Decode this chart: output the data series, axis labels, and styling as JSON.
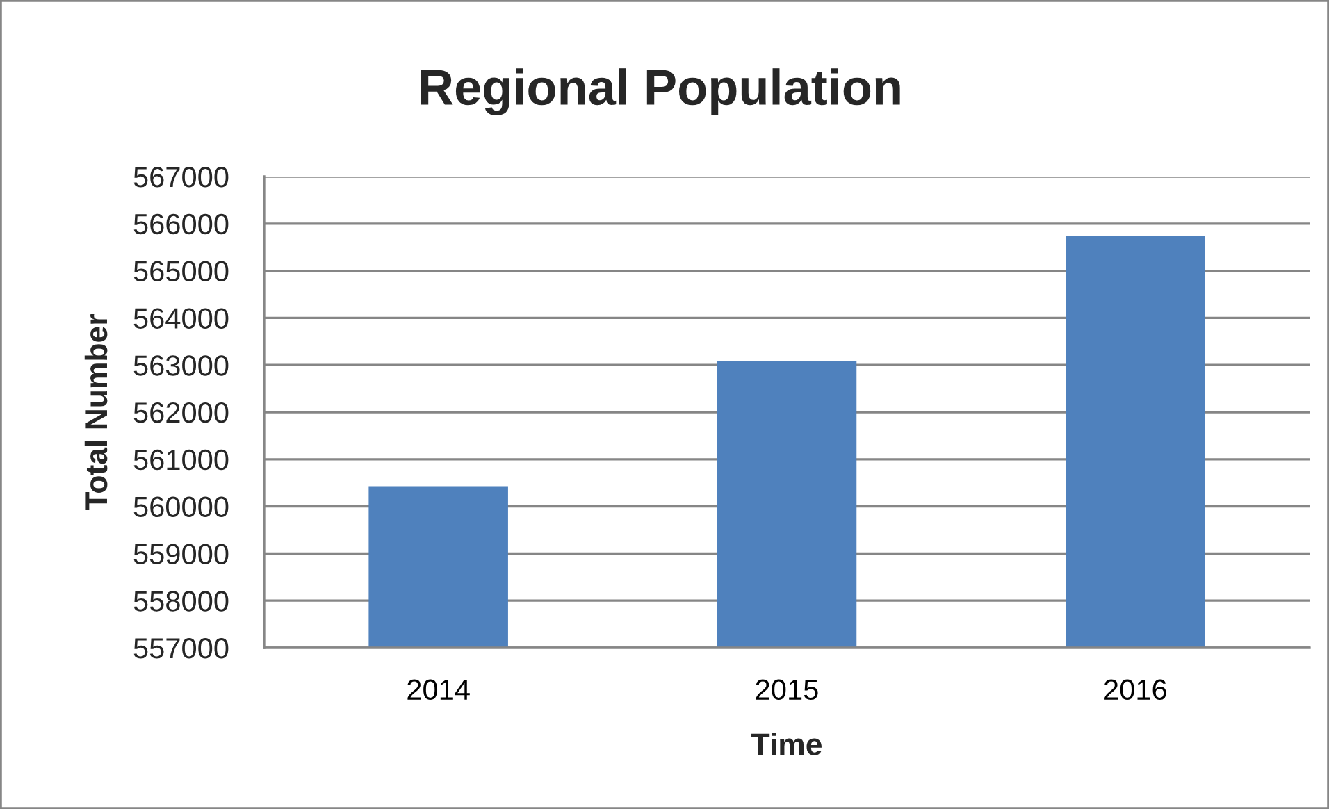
{
  "chart_data": {
    "type": "bar",
    "title": "Regional Population",
    "xlabel": "Time",
    "ylabel": "Total Number",
    "categories": [
      "2014",
      "2015",
      "2016"
    ],
    "values": [
      560430,
      563090,
      565740
    ],
    "color": "#4f81bd",
    "ylim": [
      557000,
      567000
    ],
    "yticks": [
      557000,
      558000,
      559000,
      560000,
      561000,
      562000,
      563000,
      564000,
      565000,
      566000,
      567000
    ],
    "grid": "y"
  }
}
